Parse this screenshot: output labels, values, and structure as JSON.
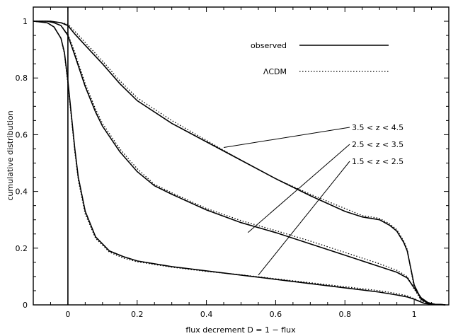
{
  "chart_data": {
    "type": "line",
    "xlabel": "flux decrement D = 1 − flux",
    "ylabel": "cumulative distribution",
    "xlim": [
      -0.1,
      1.1
    ],
    "ylim": [
      0,
      1.05
    ],
    "x_ticks": [
      0,
      0.2,
      0.4,
      0.6,
      0.8,
      1
    ],
    "x_tick_labels": [
      "0",
      "0.2",
      "0.4",
      "0.6",
      "0.8",
      "1"
    ],
    "y_ticks": [
      0,
      0.2,
      0.4,
      0.6,
      0.8,
      1
    ],
    "y_tick_labels": [
      "0",
      "0.2",
      "0.4",
      "0.6",
      "0.8",
      "1"
    ],
    "grid": false,
    "legend_position": "top-right",
    "legend": [
      {
        "label": "observed",
        "style": "solid"
      },
      {
        "label": "ΛCDM",
        "style": "dotted"
      }
    ],
    "annotations": [
      {
        "text": "3.5 < z < 4.5",
        "points_to": [
          0.45,
          0.555
        ]
      },
      {
        "text": "2.5 < z < 3.5",
        "points_to": [
          0.52,
          0.255
        ]
      },
      {
        "text": "1.5 < z < 2.5",
        "points_to": [
          0.55,
          0.105
        ]
      }
    ],
    "series": [
      {
        "redshift": "1.5 < z < 2.5",
        "observed": {
          "x": [
            -0.1,
            -0.06,
            -0.04,
            -0.02,
            -0.01,
            0,
            0.01,
            0.02,
            0.03,
            0.05,
            0.08,
            0.12,
            0.16,
            0.2,
            0.3,
            0.4,
            0.5,
            0.6,
            0.7,
            0.8,
            0.9,
            0.95,
            0.98,
            1.0,
            1.01,
            1.02,
            1.03,
            1.05,
            1.07,
            1.09
          ],
          "y": [
            1.0,
            0.995,
            0.98,
            0.94,
            0.89,
            0.79,
            0.67,
            0.55,
            0.45,
            0.33,
            0.24,
            0.19,
            0.17,
            0.155,
            0.135,
            0.12,
            0.105,
            0.09,
            0.075,
            0.06,
            0.045,
            0.035,
            0.028,
            0.02,
            0.015,
            0.01,
            0.005,
            0.002,
            0.001,
            0.0
          ]
        },
        "lcdm": {
          "x": [
            -0.1,
            -0.06,
            -0.04,
            -0.02,
            -0.01,
            0,
            0.01,
            0.02,
            0.03,
            0.05,
            0.08,
            0.12,
            0.16,
            0.2,
            0.3,
            0.4,
            0.5,
            0.6,
            0.7,
            0.8,
            0.9,
            0.95,
            0.98,
            1.0,
            1.01,
            1.02,
            1.03,
            1.05,
            1.07,
            1.09
          ],
          "y": [
            1.0,
            0.995,
            0.98,
            0.94,
            0.885,
            0.78,
            0.66,
            0.54,
            0.44,
            0.32,
            0.235,
            0.186,
            0.165,
            0.152,
            0.133,
            0.118,
            0.106,
            0.092,
            0.078,
            0.064,
            0.05,
            0.04,
            0.032,
            0.022,
            0.016,
            0.01,
            0.005,
            0.002,
            0.001,
            0.0
          ]
        }
      },
      {
        "redshift": "2.5 < z < 3.5",
        "observed": {
          "x": [
            -0.1,
            -0.06,
            -0.04,
            -0.02,
            0,
            0.02,
            0.05,
            0.08,
            0.1,
            0.15,
            0.2,
            0.25,
            0.3,
            0.4,
            0.5,
            0.6,
            0.7,
            0.8,
            0.9,
            0.95,
            0.98,
            1.0,
            1.02,
            1.04,
            1.06,
            1.08,
            1.09
          ],
          "y": [
            1.0,
            1.0,
            0.995,
            0.985,
            0.95,
            0.88,
            0.77,
            0.68,
            0.63,
            0.54,
            0.47,
            0.42,
            0.39,
            0.335,
            0.29,
            0.255,
            0.215,
            0.175,
            0.135,
            0.115,
            0.095,
            0.06,
            0.025,
            0.008,
            0.002,
            0.001,
            0.0
          ]
        },
        "lcdm": {
          "x": [
            -0.1,
            -0.06,
            -0.04,
            -0.02,
            0,
            0.02,
            0.05,
            0.08,
            0.1,
            0.15,
            0.2,
            0.25,
            0.3,
            0.4,
            0.5,
            0.6,
            0.7,
            0.8,
            0.9,
            0.95,
            0.98,
            1.0,
            1.02,
            1.04,
            1.06,
            1.08,
            1.09
          ],
          "y": [
            1.0,
            1.0,
            0.995,
            0.985,
            0.955,
            0.89,
            0.78,
            0.69,
            0.64,
            0.55,
            0.48,
            0.425,
            0.395,
            0.34,
            0.297,
            0.262,
            0.225,
            0.185,
            0.145,
            0.122,
            0.1,
            0.055,
            0.02,
            0.006,
            0.002,
            0.001,
            0.0
          ]
        }
      },
      {
        "redshift": "3.5 < z < 4.5",
        "observed": {
          "x": [
            -0.1,
            -0.05,
            -0.02,
            0,
            0.02,
            0.05,
            0.1,
            0.15,
            0.2,
            0.3,
            0.4,
            0.5,
            0.6,
            0.7,
            0.8,
            0.85,
            0.9,
            0.93,
            0.95,
            0.97,
            0.98,
            1.0,
            1.02,
            1.04,
            1.06,
            1.08,
            1.09
          ],
          "y": [
            1.0,
            1.0,
            0.995,
            0.985,
            0.955,
            0.915,
            0.85,
            0.78,
            0.72,
            0.64,
            0.575,
            0.51,
            0.445,
            0.385,
            0.33,
            0.31,
            0.3,
            0.28,
            0.26,
            0.22,
            0.19,
            0.07,
            0.02,
            0.006,
            0.002,
            0.001,
            0.0
          ]
        },
        "lcdm": {
          "x": [
            -0.1,
            -0.05,
            -0.02,
            0,
            0.02,
            0.05,
            0.1,
            0.15,
            0.2,
            0.3,
            0.4,
            0.5,
            0.6,
            0.7,
            0.8,
            0.85,
            0.9,
            0.93,
            0.95,
            0.97,
            0.98,
            1.0,
            1.02,
            1.04,
            1.06,
            1.08,
            1.09
          ],
          "y": [
            1.0,
            1.0,
            0.995,
            0.99,
            0.965,
            0.925,
            0.86,
            0.79,
            0.73,
            0.65,
            0.58,
            0.51,
            0.445,
            0.39,
            0.34,
            0.315,
            0.305,
            0.285,
            0.265,
            0.225,
            0.195,
            0.06,
            0.015,
            0.005,
            0.002,
            0.001,
            0.0
          ]
        }
      }
    ]
  }
}
